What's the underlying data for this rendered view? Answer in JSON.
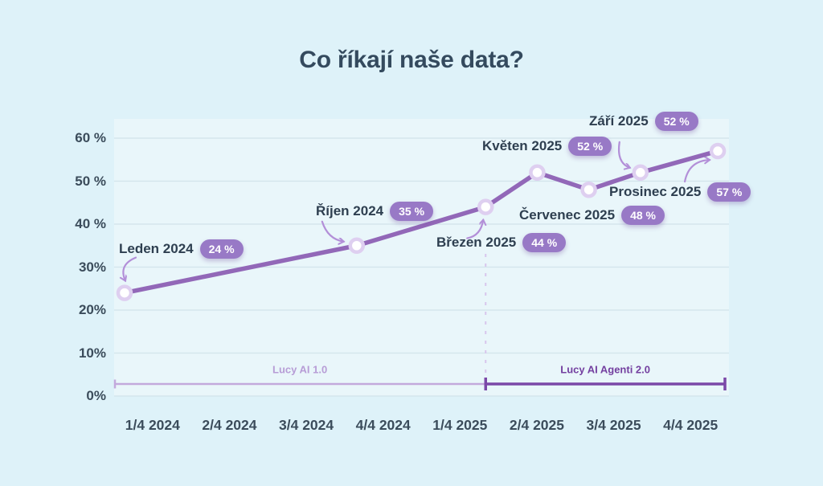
{
  "chart_data": {
    "type": "line",
    "title": "Co říkají naše data?",
    "grid": "horizontal",
    "legend_position": "none",
    "line_color": "#9268B8",
    "badge_color": "#9879C6",
    "y_ticks": [
      0,
      10,
      20,
      30,
      40,
      50,
      60
    ],
    "y_tick_labels": [
      "0%",
      "10%",
      "20%",
      "30%",
      "40 %",
      "50 %",
      "60 %"
    ],
    "ylim": [
      0,
      65
    ],
    "x_tick_labels": [
      "1/4 2024",
      "2/4 2024",
      "3/4 2024",
      "4/4 2024",
      "1/4 2025",
      "2/4 2025",
      "3/4 2025",
      "4/4 2025"
    ],
    "points": [
      {
        "label": "Leden 2024",
        "badge": "24 %",
        "value": 24,
        "month_index": 0
      },
      {
        "label": "Říjen 2024",
        "badge": "35 %",
        "value": 35,
        "month_index": 9
      },
      {
        "label": "Březen 2025",
        "badge": "44 %",
        "value": 44,
        "month_index": 14
      },
      {
        "label": "Květen 2025",
        "badge": "52 %",
        "value": 52,
        "month_index": 16
      },
      {
        "label": "Červenec 2025",
        "badge": "48 %",
        "value": 48,
        "month_index": 18
      },
      {
        "label": "Září 2025",
        "badge": "52 %",
        "value": 52,
        "month_index": 20
      },
      {
        "label": "Prosinec 2025",
        "badge": "57 %",
        "value": 57,
        "month_index": 23
      }
    ],
    "phases": [
      {
        "label": "Lucy AI 1.0",
        "color": "#C3A9DC",
        "label_color": "#B79CD6"
      },
      {
        "label": "Lucy AI Agenti 2.0",
        "color": "#7B48A8",
        "label_color": "#7440A0"
      }
    ]
  }
}
